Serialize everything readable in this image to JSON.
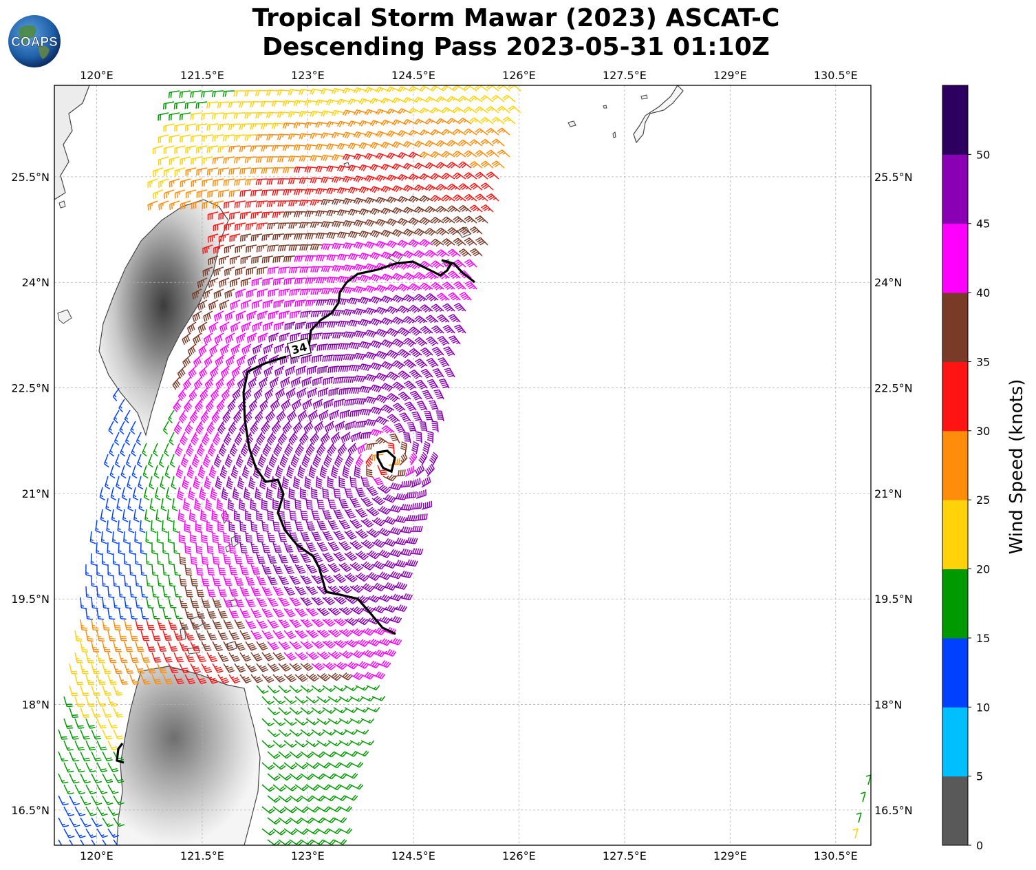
{
  "title": {
    "line1": "Tropical Storm Mawar (2023) ASCAT-C",
    "line2": "Descending Pass 2023-05-31 01:10Z"
  },
  "logo": {
    "text": "COAPS",
    "icon": "globe-logo-icon"
  },
  "axes": {
    "lon_labels": [
      "120°E",
      "121.5°E",
      "123°E",
      "124.5°E",
      "126°E",
      "127.5°E",
      "129°E",
      "130.5°E"
    ],
    "lat_labels": [
      "25.5°N",
      "24°N",
      "22.5°N",
      "21°N",
      "19.5°N",
      "18°N",
      "16.5°N"
    ],
    "grid": "dashed",
    "lon_range": [
      119.4,
      131.0
    ],
    "lat_range": [
      16.0,
      26.8
    ]
  },
  "contour": {
    "label": "34",
    "units": "knots"
  },
  "colorbar": {
    "label": "Wind Speed (knots)",
    "ticks": [
      "0",
      "5",
      "10",
      "15",
      "20",
      "25",
      "30",
      "35",
      "40",
      "45",
      "50"
    ],
    "bins": [
      {
        "from": 0,
        "to": 5,
        "color": "#595959"
      },
      {
        "from": 5,
        "to": 10,
        "color": "#00bfff"
      },
      {
        "from": 10,
        "to": 15,
        "color": "#0040ff"
      },
      {
        "from": 15,
        "to": 20,
        "color": "#009900"
      },
      {
        "from": 20,
        "to": 25,
        "color": "#ffd20a"
      },
      {
        "from": 25,
        "to": 30,
        "color": "#ff8c0a"
      },
      {
        "from": 30,
        "to": 35,
        "color": "#ff1414"
      },
      {
        "from": 35,
        "to": 40,
        "color": "#7a3a28"
      },
      {
        "from": 40,
        "to": 45,
        "color": "#ff00ff"
      },
      {
        "from": 45,
        "to": 50,
        "color": "#8a00b4"
      },
      {
        "from": 50,
        "to": 55,
        "color": "#2d0060"
      }
    ]
  },
  "storm_center": {
    "lon": 124.1,
    "lat": 21.5
  }
}
